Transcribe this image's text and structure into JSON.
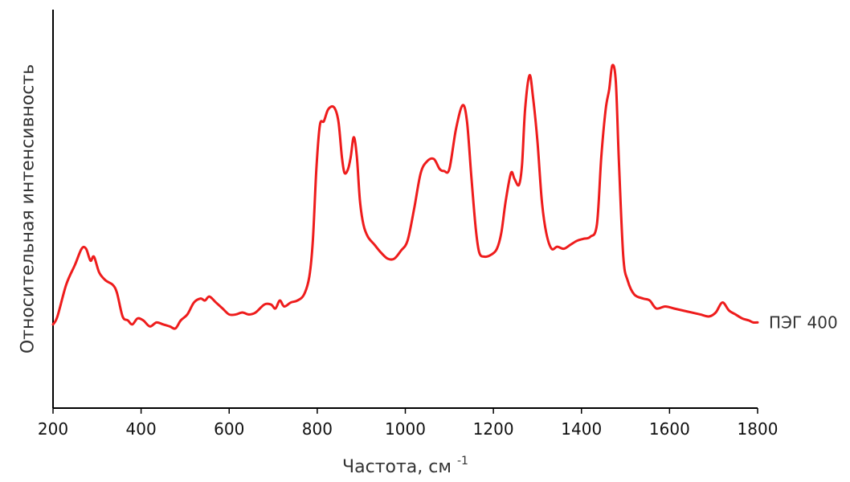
{
  "chart_data": {
    "type": "line",
    "title": "",
    "xlabel": "Частота, см",
    "xlabel_superscript": "-1",
    "ylabel": "Относительная интенсивность",
    "xlim": [
      200,
      1800
    ],
    "ylim": [
      0,
      1
    ],
    "xticks": [
      200,
      400,
      600,
      800,
      1000,
      1200,
      1400,
      1600,
      1800
    ],
    "xtick_labels": [
      "200",
      "400",
      "600",
      "800",
      "1000",
      "1200",
      "1400",
      "1600",
      "1800"
    ],
    "y_ticks_shown": false,
    "grid": false,
    "series": [
      {
        "name": "ПЭГ 400",
        "color": "#ee1c1c",
        "points": [
          [
            200,
            0.21
          ],
          [
            210,
            0.23
          ],
          [
            230,
            0.31
          ],
          [
            250,
            0.36
          ],
          [
            265,
            0.4
          ],
          [
            275,
            0.4
          ],
          [
            285,
            0.37
          ],
          [
            293,
            0.38
          ],
          [
            305,
            0.34
          ],
          [
            320,
            0.32
          ],
          [
            335,
            0.31
          ],
          [
            345,
            0.29
          ],
          [
            358,
            0.23
          ],
          [
            370,
            0.22
          ],
          [
            380,
            0.21
          ],
          [
            392,
            0.225
          ],
          [
            405,
            0.22
          ],
          [
            420,
            0.205
          ],
          [
            435,
            0.215
          ],
          [
            450,
            0.21
          ],
          [
            465,
            0.205
          ],
          [
            478,
            0.2
          ],
          [
            490,
            0.22
          ],
          [
            505,
            0.235
          ],
          [
            520,
            0.265
          ],
          [
            535,
            0.275
          ],
          [
            545,
            0.27
          ],
          [
            555,
            0.28
          ],
          [
            570,
            0.265
          ],
          [
            585,
            0.25
          ],
          [
            600,
            0.235
          ],
          [
            615,
            0.235
          ],
          [
            630,
            0.24
          ],
          [
            645,
            0.235
          ],
          [
            660,
            0.24
          ],
          [
            680,
            0.26
          ],
          [
            695,
            0.26
          ],
          [
            705,
            0.25
          ],
          [
            715,
            0.27
          ],
          [
            725,
            0.255
          ],
          [
            740,
            0.265
          ],
          [
            755,
            0.27
          ],
          [
            770,
            0.285
          ],
          [
            782,
            0.33
          ],
          [
            790,
            0.42
          ],
          [
            798,
            0.6
          ],
          [
            806,
            0.71
          ],
          [
            815,
            0.72
          ],
          [
            825,
            0.75
          ],
          [
            838,
            0.755
          ],
          [
            848,
            0.72
          ],
          [
            856,
            0.63
          ],
          [
            862,
            0.59
          ],
          [
            870,
            0.6
          ],
          [
            876,
            0.63
          ],
          [
            883,
            0.68
          ],
          [
            890,
            0.63
          ],
          [
            897,
            0.52
          ],
          [
            905,
            0.46
          ],
          [
            915,
            0.43
          ],
          [
            930,
            0.41
          ],
          [
            945,
            0.39
          ],
          [
            960,
            0.375
          ],
          [
            975,
            0.375
          ],
          [
            990,
            0.395
          ],
          [
            1005,
            0.42
          ],
          [
            1020,
            0.5
          ],
          [
            1035,
            0.59
          ],
          [
            1050,
            0.62
          ],
          [
            1065,
            0.625
          ],
          [
            1078,
            0.6
          ],
          [
            1088,
            0.595
          ],
          [
            1100,
            0.6
          ],
          [
            1115,
            0.7
          ],
          [
            1130,
            0.76
          ],
          [
            1140,
            0.72
          ],
          [
            1150,
            0.58
          ],
          [
            1160,
            0.45
          ],
          [
            1168,
            0.39
          ],
          [
            1180,
            0.38
          ],
          [
            1195,
            0.385
          ],
          [
            1208,
            0.4
          ],
          [
            1218,
            0.44
          ],
          [
            1228,
            0.52
          ],
          [
            1240,
            0.59
          ],
          [
            1248,
            0.575
          ],
          [
            1258,
            0.56
          ],
          [
            1265,
            0.61
          ],
          [
            1272,
            0.75
          ],
          [
            1282,
            0.835
          ],
          [
            1290,
            0.78
          ],
          [
            1300,
            0.67
          ],
          [
            1310,
            0.52
          ],
          [
            1320,
            0.44
          ],
          [
            1332,
            0.4
          ],
          [
            1345,
            0.405
          ],
          [
            1360,
            0.4
          ],
          [
            1375,
            0.41
          ],
          [
            1390,
            0.42
          ],
          [
            1405,
            0.425
          ],
          [
            1420,
            0.43
          ],
          [
            1435,
            0.46
          ],
          [
            1445,
            0.63
          ],
          [
            1455,
            0.75
          ],
          [
            1463,
            0.8
          ],
          [
            1470,
            0.86
          ],
          [
            1478,
            0.82
          ],
          [
            1485,
            0.62
          ],
          [
            1495,
            0.38
          ],
          [
            1505,
            0.32
          ],
          [
            1520,
            0.285
          ],
          [
            1540,
            0.275
          ],
          [
            1555,
            0.27
          ],
          [
            1570,
            0.25
          ],
          [
            1590,
            0.255
          ],
          [
            1610,
            0.25
          ],
          [
            1630,
            0.245
          ],
          [
            1650,
            0.24
          ],
          [
            1670,
            0.235
          ],
          [
            1690,
            0.23
          ],
          [
            1705,
            0.24
          ],
          [
            1720,
            0.265
          ],
          [
            1735,
            0.245
          ],
          [
            1750,
            0.235
          ],
          [
            1765,
            0.225
          ],
          [
            1780,
            0.22
          ],
          [
            1790,
            0.215
          ],
          [
            1800,
            0.215
          ]
        ]
      }
    ]
  }
}
